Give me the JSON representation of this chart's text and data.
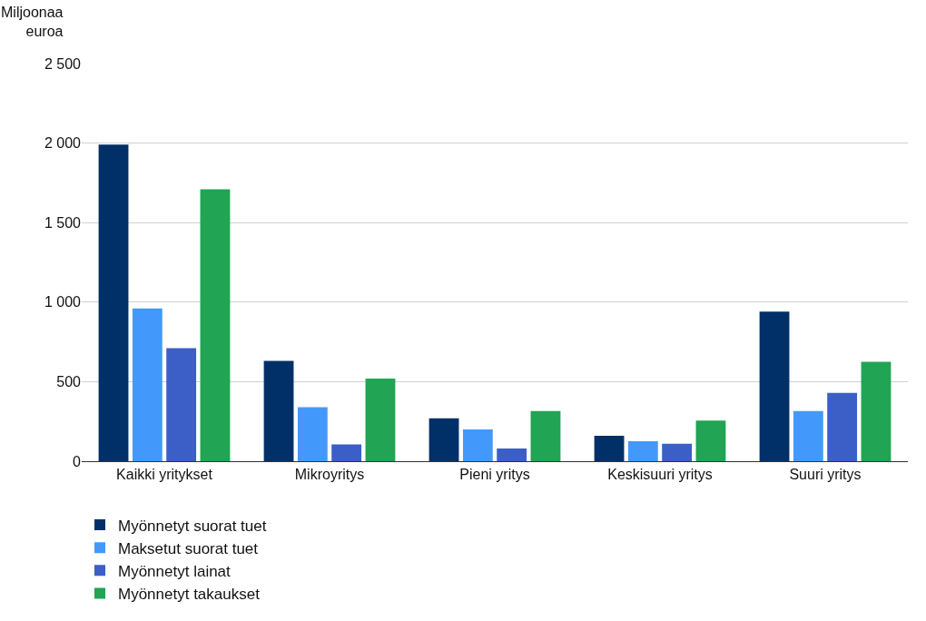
{
  "chart_data": {
    "type": "bar",
    "ylabel": "Miljoonaa\neuroa",
    "categories": [
      "Kaikki yritykset",
      "Mikroyritys",
      "Pieni yritys",
      "Keskisuuri yritys",
      "Suuri yritys"
    ],
    "series": [
      {
        "name": "Myönnetyt suorat tuet",
        "color": "#003067",
        "values": [
          1990,
          630,
          270,
          160,
          940
        ]
      },
      {
        "name": "Maksetut suorat tuet",
        "color": "#4399fb",
        "values": [
          960,
          340,
          200,
          125,
          315
        ]
      },
      {
        "name": "Myönnetyt lainat",
        "color": "#3b5ec7",
        "values": [
          710,
          105,
          80,
          110,
          430
        ]
      },
      {
        "name": "Myönnetyt takaukset",
        "color": "#21a453",
        "values": [
          1710,
          520,
          315,
          255,
          625
        ]
      }
    ],
    "ylim": [
      0,
      2500
    ],
    "yticks": [
      0,
      {
        "value": 500,
        "label": "500"
      },
      {
        "value": 1000,
        "label": "1 000"
      },
      {
        "value": 1500,
        "label": "1 500"
      },
      {
        "value": 2000,
        "label": "2 000"
      },
      {
        "value": 2500,
        "label": "2 500"
      }
    ],
    "grid": "y",
    "legend": "bottom"
  }
}
